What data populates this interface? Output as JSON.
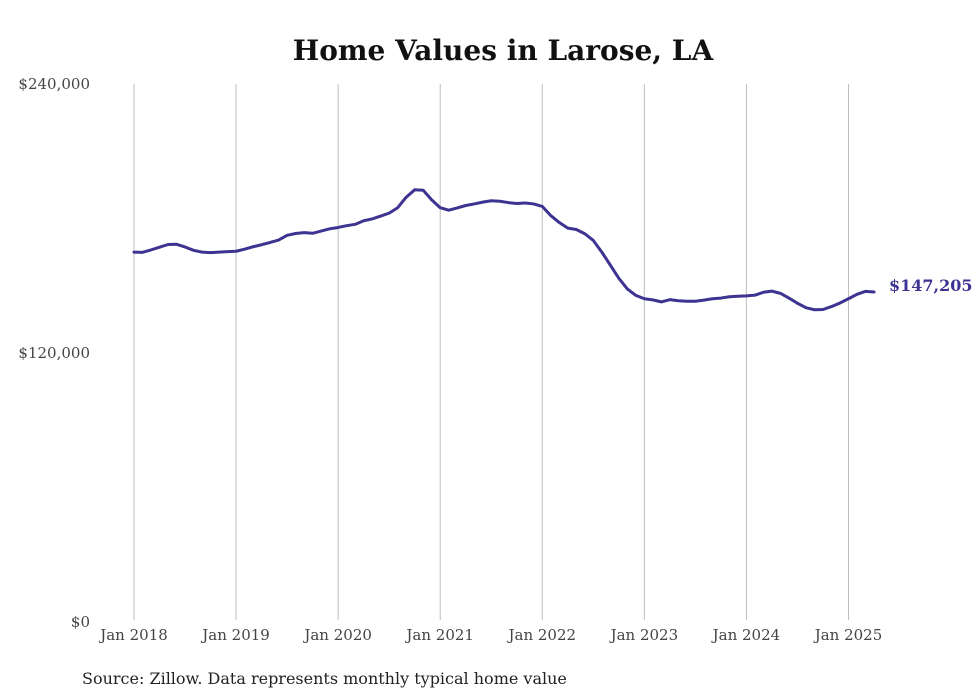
{
  "chart_data": {
    "type": "line",
    "title": "Home Values in Larose, LA",
    "xlabel": "",
    "ylabel": "",
    "ylim": [
      0,
      240000
    ],
    "y_ticks": [
      {
        "value": 0,
        "label": "$0"
      },
      {
        "value": 120000,
        "label": "$120,000"
      },
      {
        "value": 240000,
        "label": "$240,000"
      }
    ],
    "x_ticks": [
      {
        "value": "2018-01",
        "label": "Jan 2018"
      },
      {
        "value": "2019-01",
        "label": "Jan 2019"
      },
      {
        "value": "2020-01",
        "label": "Jan 2020"
      },
      {
        "value": "2021-01",
        "label": "Jan 2021"
      },
      {
        "value": "2022-01",
        "label": "Jan 2022"
      },
      {
        "value": "2023-01",
        "label": "Jan 2023"
      },
      {
        "value": "2024-01",
        "label": "Jan 2024"
      },
      {
        "value": "2025-01",
        "label": "Jan 2025"
      }
    ],
    "x_range": [
      "2018-01",
      "2025-04"
    ],
    "grid": "vertical",
    "legend": "none",
    "line_color": "#3d3391",
    "end_label": "$147,205",
    "source": "Source: Zillow. Data represents monthly typical home value",
    "series": [
      {
        "x": [
          "2018-01",
          "2018-02",
          "2018-03",
          "2018-04",
          "2018-05",
          "2018-06",
          "2018-07",
          "2018-08",
          "2018-09",
          "2018-10",
          "2018-11",
          "2018-12",
          "2019-01",
          "2019-02",
          "2019-03",
          "2019-04",
          "2019-05",
          "2019-06",
          "2019-07",
          "2019-08",
          "2019-09",
          "2019-10",
          "2019-11",
          "2019-12",
          "2020-01",
          "2020-02",
          "2020-03",
          "2020-04",
          "2020-05",
          "2020-06",
          "2020-07",
          "2020-08",
          "2020-09",
          "2020-10",
          "2020-11",
          "2020-12",
          "2021-01",
          "2021-02",
          "2021-03",
          "2021-04",
          "2021-05",
          "2021-06",
          "2021-07",
          "2021-08",
          "2021-09",
          "2021-10",
          "2021-11",
          "2021-12",
          "2022-01",
          "2022-02",
          "2022-03",
          "2022-04",
          "2022-05",
          "2022-06",
          "2022-07",
          "2022-08",
          "2022-09",
          "2022-10",
          "2022-11",
          "2022-12",
          "2023-01",
          "2023-02",
          "2023-03",
          "2023-04",
          "2023-05",
          "2023-06",
          "2023-07",
          "2023-08",
          "2023-09",
          "2023-10",
          "2023-11",
          "2023-12",
          "2024-01",
          "2024-02",
          "2024-03",
          "2024-04",
          "2024-05",
          "2024-06",
          "2024-07",
          "2024-08",
          "2024-09",
          "2024-10",
          "2024-11",
          "2024-12",
          "2025-01",
          "2025-02",
          "2025-03",
          "2025-04"
        ],
        "values": [
          165000,
          164900,
          166000,
          167200,
          168400,
          168500,
          167300,
          165800,
          165000,
          164800,
          165000,
          165200,
          165400,
          166300,
          167400,
          168300,
          169300,
          170400,
          172500,
          173300,
          173700,
          173400,
          174400,
          175400,
          176000,
          176800,
          177400,
          179000,
          179800,
          181100,
          182400,
          184800,
          189500,
          192800,
          192600,
          188300,
          184800,
          183700,
          184700,
          185800,
          186500,
          187300,
          187900,
          187700,
          187100,
          186700,
          186900,
          186500,
          185400,
          181300,
          178200,
          175700,
          175100,
          173200,
          170200,
          165000,
          159200,
          153300,
          148600,
          145700,
          144200,
          143700,
          142800,
          143800,
          143300,
          143100,
          143100,
          143600,
          144200,
          144500,
          145100,
          145300,
          145500,
          145800,
          147100,
          147600,
          146600,
          144500,
          142200,
          140200,
          139300,
          139400,
          140700,
          142300,
          144200,
          146200,
          147500,
          147205
        ]
      }
    ]
  }
}
